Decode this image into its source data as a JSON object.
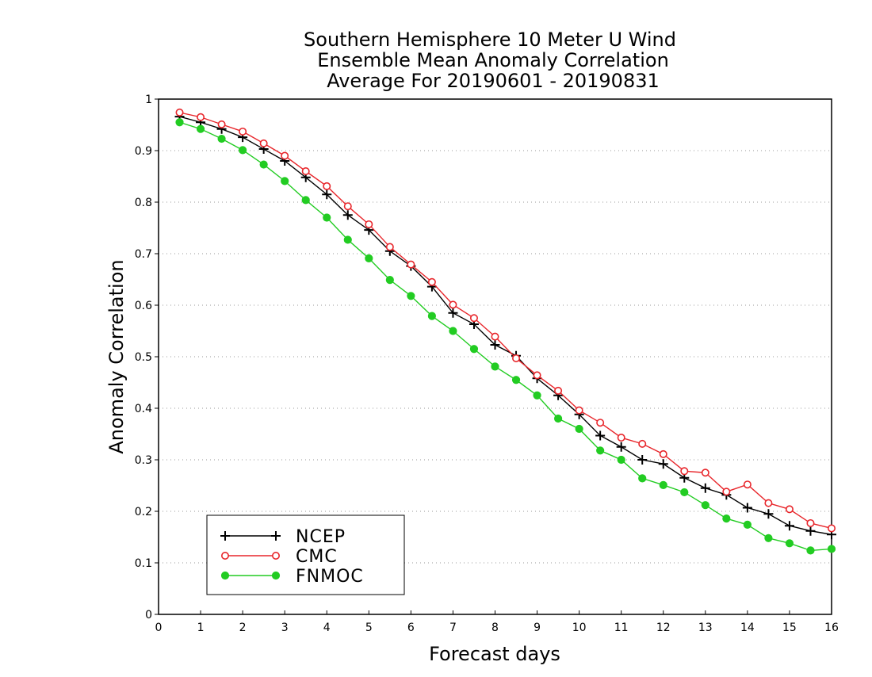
{
  "chart_data": {
    "type": "line",
    "title_lines": [
      "Southern Hemisphere 10 Meter U Wind",
      "Ensemble Mean Anomaly Correlation",
      "Average For 20190601 - 20190831"
    ],
    "xlabel": "Forecast days",
    "ylabel": "Anomaly Correlation",
    "xlim": [
      0,
      16
    ],
    "ylim": [
      0,
      1
    ],
    "xticks": [
      "0",
      "1",
      "2",
      "3",
      "4",
      "5",
      "6",
      "7",
      "8",
      "9",
      "10",
      "11",
      "12",
      "13",
      "14",
      "15",
      "16"
    ],
    "yticks": [
      "0",
      "0.1",
      "0.2",
      "0.3",
      "0.4",
      "0.5",
      "0.6",
      "0.7",
      "0.8",
      "0.9",
      "1"
    ],
    "grid": "horizontal dotted",
    "legend_position": "bottom-left",
    "x": [
      0.5,
      1,
      1.5,
      2,
      2.5,
      3,
      3.5,
      4,
      4.5,
      5,
      5.5,
      6,
      6.5,
      7,
      7.5,
      8,
      8.5,
      9,
      9.5,
      10,
      10.5,
      11,
      11.5,
      12,
      12.5,
      13,
      13.5,
      14,
      14.5,
      15,
      15.5,
      16
    ],
    "series": [
      {
        "name": "NCEP",
        "color": "#000000",
        "marker": "plus",
        "values": [
          0.966,
          0.955,
          0.942,
          0.926,
          0.903,
          0.88,
          0.848,
          0.815,
          0.775,
          0.746,
          0.705,
          0.676,
          0.636,
          0.585,
          0.563,
          0.523,
          0.502,
          0.458,
          0.425,
          0.388,
          0.347,
          0.325,
          0.3,
          0.292,
          0.265,
          0.245,
          0.232,
          0.207,
          0.195,
          0.172,
          0.162,
          0.155
        ]
      },
      {
        "name": "CMC",
        "color": "#e8262b",
        "marker": "open-circle",
        "values": [
          0.974,
          0.965,
          0.951,
          0.937,
          0.914,
          0.89,
          0.86,
          0.831,
          0.792,
          0.757,
          0.713,
          0.679,
          0.645,
          0.601,
          0.575,
          0.539,
          0.497,
          0.464,
          0.434,
          0.396,
          0.372,
          0.343,
          0.331,
          0.311,
          0.278,
          0.275,
          0.238,
          0.252,
          0.216,
          0.204,
          0.177,
          0.167
        ]
      },
      {
        "name": "FNMOC",
        "color": "#22cc22",
        "marker": "filled-circle",
        "values": [
          0.955,
          0.942,
          0.923,
          0.901,
          0.873,
          0.841,
          0.804,
          0.77,
          0.727,
          0.691,
          0.649,
          0.618,
          0.579,
          0.55,
          0.515,
          0.481,
          0.455,
          0.425,
          0.38,
          0.36,
          0.318,
          0.3,
          0.264,
          0.251,
          0.237,
          0.212,
          0.186,
          0.174,
          0.148,
          0.138,
          0.124,
          0.127
        ]
      }
    ]
  }
}
